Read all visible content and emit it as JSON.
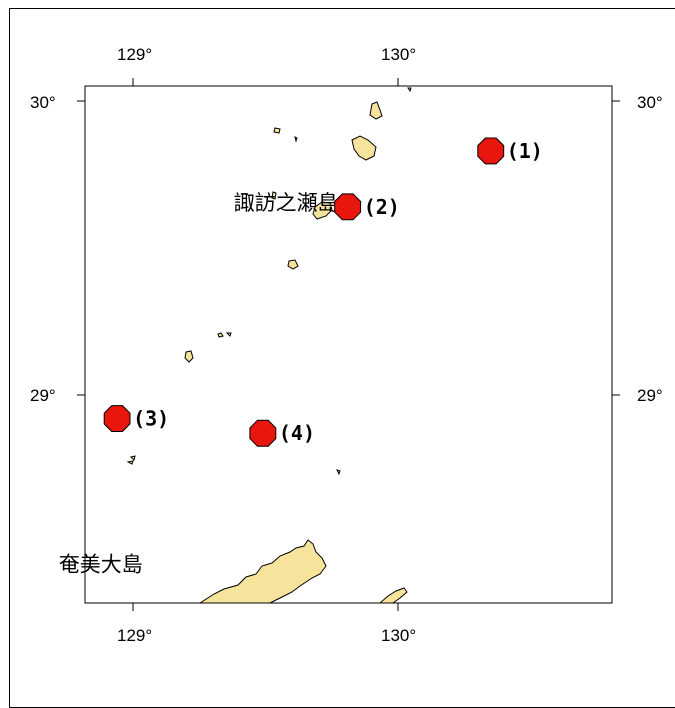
{
  "map": {
    "lon_range": [
      128.82,
      130.82
    ],
    "lat_range": [
      28.33,
      30.0
    ],
    "lon_ticks": [
      {
        "value": 129,
        "label": "129°"
      },
      {
        "value": 130,
        "label": "130°"
      }
    ],
    "lat_ticks": [
      {
        "value": 30,
        "label": "30°"
      },
      {
        "value": 29,
        "label": "29°"
      }
    ],
    "land_color": "#f6e39c",
    "marker_color": "#e8160c"
  },
  "markers": [
    {
      "id": "1",
      "label": "(1)",
      "lon": 130.35,
      "lat": 29.83
    },
    {
      "id": "2",
      "label": "(2)",
      "lon": 129.81,
      "lat": 29.64
    },
    {
      "id": "3",
      "label": "(3)",
      "lon": 128.94,
      "lat": 28.92
    },
    {
      "id": "4",
      "label": "(4)",
      "lon": 129.49,
      "lat": 28.87
    }
  ],
  "places": [
    {
      "name": "諏訪之瀬島",
      "lon": 129.38,
      "lat": 29.63
    },
    {
      "name": "奄美大島",
      "lon": 128.72,
      "lat": 28.4
    }
  ]
}
